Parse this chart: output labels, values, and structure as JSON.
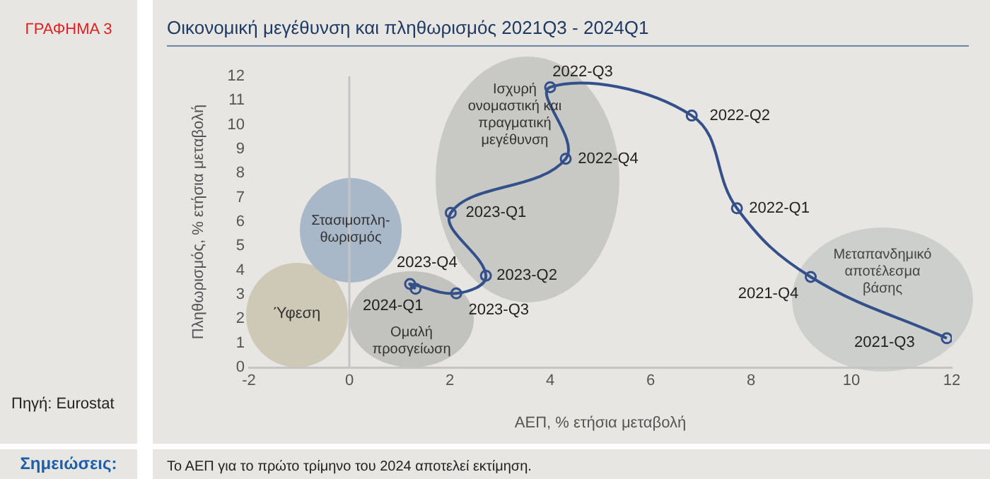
{
  "chart_data": {
    "type": "line",
    "title": "Οικονομική μεγέθυνση και πληθωρισμός 2021Q3 - 2024Q1",
    "xlabel": "ΑΕΠ, % ετήσια μεταβολή",
    "ylabel": "Πληθωρισμός, % ετήσια μεταβολή",
    "x": [
      11.9,
      9.19,
      7.72,
      6.82,
      4.0,
      4.31,
      2.02,
      2.72,
      2.13,
      1.21,
      1.32
    ],
    "series": [
      {
        "color": "#34508a",
        "values": [
          1.2,
          3.73,
          6.56,
          10.38,
          11.55,
          8.6,
          6.37,
          3.78,
          3.05,
          3.44,
          3.24
        ]
      }
    ],
    "xlim": [
      -2,
      12
    ],
    "xticks": [
      -2,
      0,
      2,
      4,
      6,
      8,
      10,
      12
    ],
    "ylim": [
      0,
      12
    ],
    "yticks": [
      0,
      1,
      2,
      3,
      4,
      5,
      6,
      7,
      8,
      9,
      10,
      11,
      12
    ],
    "grid": false,
    "legend": false,
    "marker": "circle",
    "line_style": "solid",
    "ref_lines": [
      {
        "axis": "x",
        "value": 0,
        "color": "#c4c4c4"
      }
    ],
    "annotations": [
      {
        "text": "2021-Q3",
        "x": 11.9,
        "y": 1.2
      },
      {
        "text": "2021-Q4",
        "x": 9.19,
        "y": 3.73
      },
      {
        "text": "2022-Q1",
        "x": 7.72,
        "y": 6.56
      },
      {
        "text": "2022-Q2",
        "x": 6.82,
        "y": 10.38
      },
      {
        "text": "2022-Q3",
        "x": 4.0,
        "y": 11.55
      },
      {
        "text": "2022-Q4",
        "x": 4.31,
        "y": 8.6
      },
      {
        "text": "2023-Q1",
        "x": 2.02,
        "y": 6.37
      },
      {
        "text": "2023-Q2",
        "x": 2.72,
        "y": 3.78
      },
      {
        "text": "2023-Q3",
        "x": 2.13,
        "y": 3.05
      },
      {
        "text": "2023-Q4",
        "x": 1.21,
        "y": 3.44
      },
      {
        "text": "2024-Q1",
        "x": 1.32,
        "y": 3.24
      },
      "ΓΡΑΦΗΜΑ 3",
      "Πηγή: Eurostat",
      "Σημειώσεις:",
      "Το ΑΕΠ για το πρώτο τρίμηνο του 2024 αποτελεί εκτίμηση.",
      "Ύφεση",
      "Στασιμοπλη-θωρισμός",
      "Ομαλή προσγείωση",
      "Ισχυρή ονομαστική και πραγματική μεγέθυνση",
      "Μεταπανδημικό αποτέλεσμα βάσης"
    ]
  }
}
